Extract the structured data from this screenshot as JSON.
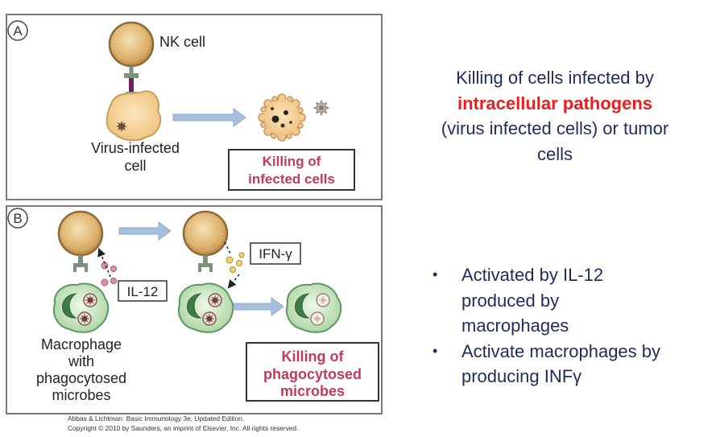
{
  "figure": {
    "panel_a": {
      "label": "A",
      "nk_cell_label": "NK cell",
      "infected_cell_label": [
        "Virus-infected",
        "cell"
      ],
      "result_box": [
        "Killing of",
        "infected cells"
      ]
    },
    "panel_b": {
      "label": "B",
      "il12_label": "IL-12",
      "ifn_gamma_label": "IFN-γ",
      "macrophage_label": [
        "Macrophage",
        "with",
        "phagocytosed",
        "microbes"
      ],
      "result_box": [
        "Killing of",
        "phagocytosed",
        "microbes"
      ]
    },
    "citation": [
      "Abbas & Lichtman: Basic Immunology 3e, Updated Edition.",
      "Copyright © 2010 by Saunders, an imprint of Elsevier, Inc. All rights reserved."
    ]
  },
  "heading": {
    "line_1": "Killing of cells infected by",
    "highlight": "intracellular pathogens",
    "line_3": "(virus infected cells) or tumor",
    "line_4": "cells"
  },
  "bullet_glyph": "•",
  "bullets": [
    [
      "Activated by IL-12",
      "produced by",
      "macrophages"
    ],
    [
      "Activate macrophages by",
      "producing INFγ"
    ]
  ],
  "colors": {
    "heading_text": "#1f2b5b",
    "highlight": "#ee1c1c",
    "result_box_text": "#c23a55",
    "arrow_fill": "#a7bfdf"
  }
}
